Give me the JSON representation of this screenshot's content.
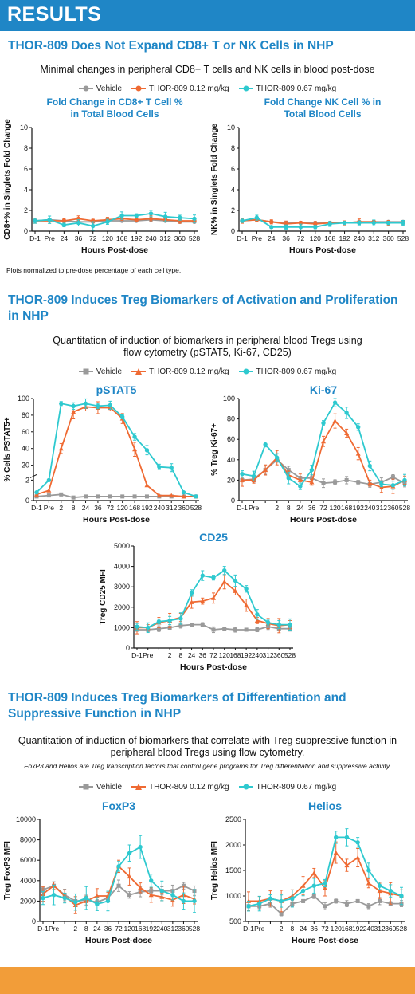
{
  "header": {
    "title": "RESULTS"
  },
  "colors": {
    "vehicle": "#9a9a9a",
    "low": "#ef6a33",
    "high": "#2ec9cf",
    "accent": "#1f86c6",
    "footer": "#f29d39"
  },
  "legend": {
    "vehicle": "Vehicle",
    "low": "THOR-809 0.12 mg/kg",
    "high": "THOR-809 0.67 mg/kg"
  },
  "sections": [
    {
      "title": "THOR-809 Does Not Expand CD8+ T or NK Cells in NHP",
      "subtitle": "Minimal changes in peripheral CD8+ T cells and NK cells in blood post-dose",
      "note": "Plots normalized to pre-dose percentage of each cell type."
    },
    {
      "title": "THOR-809 Induces Treg Biomarkers of Activation and Proliferation in NHP",
      "subtitle": "Quantitation of induction of biomarkers in peripheral blood Tregs using flow cytometry (pSTAT5, Ki-67, CD25)"
    },
    {
      "title": "THOR-809 Induces Treg Biomarkers of Differentiation and Suppressive Function in NHP",
      "subtitle": "Quantitation of induction of biomarkers that correlate with Treg suppressive function in peripheral blood Tregs using flow cytometry.",
      "note": "FoxP3 and Helios are Treg transcription factors that control gene programs for Treg differentiation and suppressive activity."
    }
  ],
  "chart_data": [
    {
      "type": "line",
      "title": "Fold Change in CD8+ T Cell % in Total Blood Cells",
      "xlabel": "Hours Post-dose",
      "ylabel": "CD8+% in Singlets Fold Change",
      "ylim": [
        0,
        10
      ],
      "yticks": [
        0,
        2,
        4,
        6,
        8,
        10
      ],
      "categories": [
        "D-1",
        "Pre",
        "24",
        "36",
        "72",
        "120",
        "168",
        "192",
        "240",
        "312",
        "360",
        "528"
      ],
      "series": [
        {
          "name": "Vehicle",
          "values": [
            1,
            1.1,
            1,
            0.9,
            0.9,
            1,
            1,
            1,
            1.1,
            1,
            0.9,
            0.9
          ]
        },
        {
          "name": "THOR-809 0.12 mg/kg",
          "values": [
            1,
            1,
            1.0,
            1.2,
            1.0,
            1.1,
            1.2,
            1.1,
            1.2,
            1.1,
            1.0,
            1.0
          ]
        },
        {
          "name": "THOR-809 0.67 mg/kg",
          "values": [
            1,
            1.1,
            0.6,
            0.8,
            0.5,
            0.9,
            1.5,
            1.5,
            1.7,
            1.4,
            1.3,
            1.2
          ]
        }
      ]
    },
    {
      "type": "line",
      "title": "Fold Change NK Cell % in Total Blood Cells",
      "xlabel": "Hours Post-dose",
      "ylabel": "NK% in Singlets Fold Change",
      "ylim": [
        0,
        10
      ],
      "yticks": [
        0,
        2,
        4,
        6,
        8,
        10
      ],
      "categories": [
        "D-1",
        "Pre",
        "24",
        "36",
        "72",
        "120",
        "168",
        "192",
        "240",
        "312",
        "360",
        "528"
      ],
      "series": [
        {
          "name": "Vehicle",
          "values": [
            1,
            1.1,
            0.9,
            0.8,
            0.8,
            0.8,
            0.8,
            0.8,
            0.9,
            0.9,
            0.9,
            0.9
          ]
        },
        {
          "name": "THOR-809 0.12 mg/kg",
          "values": [
            1,
            1.1,
            0.9,
            0.7,
            0.8,
            0.7,
            0.8,
            0.8,
            0.9,
            0.9,
            0.8,
            0.8
          ]
        },
        {
          "name": "THOR-809 0.67 mg/kg",
          "values": [
            1,
            1.3,
            0.4,
            0.4,
            0.4,
            0.4,
            0.7,
            0.8,
            0.8,
            0.8,
            0.8,
            0.8
          ]
        }
      ]
    },
    {
      "type": "line",
      "title": "pSTAT5",
      "xlabel": "Hours Post-dose",
      "ylabel": "% Cells PSTAT5+",
      "yticks": [
        "0",
        "2",
        "20",
        "40",
        "60",
        "80",
        "100"
      ],
      "categories": [
        "D-1",
        "Pre",
        "2",
        "8",
        "24",
        "36",
        "72",
        "120",
        "168",
        "192",
        "240",
        "312",
        "360",
        "528"
      ],
      "series": [
        {
          "name": "Vehicle",
          "values": [
            0.4,
            0.5,
            0.6,
            0.3,
            0.4,
            0.4,
            0.4,
            0.4,
            0.4,
            0.4,
            0.4,
            0.4,
            0.4,
            0.4
          ]
        },
        {
          "name": "THOR-809 0.12 mg/kg",
          "values": [
            0.6,
            1.0,
            40,
            84,
            90,
            89,
            89,
            76,
            39,
            1.5,
            0.5,
            0.5,
            0.4,
            0.4
          ]
        },
        {
          "name": "THOR-809 0.67 mg/kg",
          "values": [
            0.8,
            2.0,
            94,
            91,
            94,
            91,
            92,
            78,
            54,
            38,
            18,
            17,
            0.8,
            0.4
          ]
        }
      ]
    },
    {
      "type": "line",
      "title": "Ki-67",
      "xlabel": "Hours Post-dose",
      "ylabel": "% Treg Ki-67+",
      "ylim": [
        0,
        100
      ],
      "yticks": [
        0,
        20,
        40,
        60,
        80,
        100
      ],
      "categories": [
        "D-1",
        "Pre",
        "",
        "2",
        "8",
        "24",
        "36",
        "72",
        "120",
        "168",
        "192",
        "240",
        "312",
        "360",
        "528"
      ],
      "series": [
        {
          "name": "Vehicle",
          "values": [
            20,
            21,
            30,
            40,
            30,
            22,
            22,
            17,
            18,
            20,
            18,
            16,
            18,
            23,
            17
          ]
        },
        {
          "name": "THOR-809 0.12 mg/kg",
          "values": [
            20,
            20,
            30,
            42,
            25,
            20,
            18,
            58,
            78,
            66,
            46,
            17,
            13,
            14,
            20
          ]
        },
        {
          "name": "THOR-809 0.67 mg/kg",
          "values": [
            26,
            24,
            55,
            42,
            22,
            14,
            30,
            76,
            96,
            86,
            72,
            34,
            16,
            15,
            20
          ]
        }
      ]
    },
    {
      "type": "line",
      "title": "CD25",
      "xlabel": "Hours Post-dose",
      "ylabel": "Treg CD25 MFI",
      "ylim": [
        0,
        5000
      ],
      "yticks": [
        0,
        1000,
        2000,
        3000,
        4000,
        5000
      ],
      "categories": [
        "D-1",
        "Pre",
        "",
        "2",
        "8",
        "24",
        "36",
        "72",
        "120",
        "168",
        "192",
        "240",
        "312",
        "360",
        "528"
      ],
      "series": [
        {
          "name": "Vehicle",
          "values": [
            900,
            900,
            950,
            1000,
            1100,
            1150,
            1150,
            900,
            950,
            900,
            900,
            900,
            1050,
            950,
            950
          ]
        },
        {
          "name": "THOR-809 0.12 mg/kg",
          "values": [
            1000,
            1000,
            1250,
            1350,
            1500,
            2250,
            2300,
            2450,
            3250,
            2800,
            2100,
            1350,
            1200,
            1100,
            1150
          ]
        },
        {
          "name": "THOR-809 0.67 mg/kg",
          "values": [
            1050,
            1000,
            1300,
            1350,
            1450,
            2700,
            3550,
            3450,
            3800,
            3300,
            2900,
            1650,
            1250,
            1150,
            1150
          ]
        }
      ]
    },
    {
      "type": "line",
      "title": "FoxP3",
      "xlabel": "Hours Post-dose",
      "ylabel": "Treg FoxP3 MFI",
      "ylim": [
        0,
        10000
      ],
      "yticks": [
        0,
        2000,
        4000,
        6000,
        8000,
        10000
      ],
      "categories": [
        "D-1",
        "Pre",
        "",
        "2",
        "8",
        "24",
        "36",
        "72",
        "120",
        "168",
        "192",
        "240",
        "312",
        "360",
        "528"
      ],
      "series": [
        {
          "name": "Vehicle",
          "values": [
            3100,
            3500,
            2600,
            2000,
            2100,
            1900,
            2300,
            3500,
            2600,
            2900,
            3000,
            3000,
            3000,
            3500,
            3000
          ]
        },
        {
          "name": "THOR-809 0.12 mg/kg",
          "values": [
            2700,
            3500,
            2500,
            1600,
            2000,
            2500,
            2500,
            5400,
            4400,
            3300,
            2600,
            2400,
            2100,
            2600,
            2200
          ]
        },
        {
          "name": "THOR-809 0.67 mg/kg",
          "values": [
            2300,
            2600,
            2300,
            1900,
            2300,
            1700,
            2000,
            5400,
            6700,
            7300,
            4000,
            3000,
            2600,
            2000,
            2000
          ]
        }
      ]
    },
    {
      "type": "line",
      "title": "Helios",
      "xlabel": "Hours Post-dose",
      "ylabel": "Treg Helios MFI",
      "ylim": [
        500,
        2500
      ],
      "yticks": [
        500,
        1000,
        1500,
        2000,
        2500
      ],
      "categories": [
        "D-1",
        "Pre",
        "",
        "2",
        "8",
        "24",
        "36",
        "72",
        "120",
        "168",
        "192",
        "240",
        "312",
        "360",
        "528"
      ],
      "series": [
        {
          "name": "Vehicle",
          "values": [
            800,
            800,
            850,
            650,
            850,
            900,
            1000,
            800,
            900,
            850,
            900,
            800,
            900,
            850,
            850
          ]
        },
        {
          "name": "THOR-809 0.12 mg/kg",
          "values": [
            900,
            900,
            950,
            900,
            1000,
            1200,
            1450,
            1150,
            1850,
            1600,
            1750,
            1250,
            1100,
            1050,
            1000
          ]
        },
        {
          "name": "THOR-809 0.67 mg/kg",
          "values": [
            800,
            850,
            950,
            900,
            950,
            1100,
            1200,
            1250,
            2150,
            2150,
            2050,
            1500,
            1200,
            1100,
            1000
          ]
        }
      ]
    }
  ]
}
